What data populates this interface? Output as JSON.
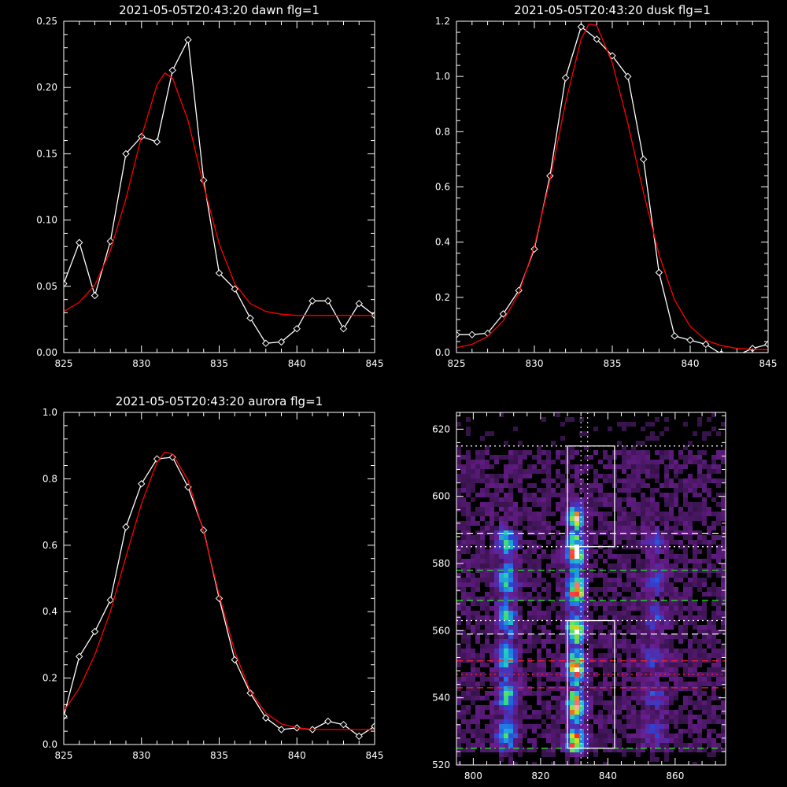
{
  "chart_data": [
    {
      "type": "line",
      "title": "2021-05-05T20:43:20 dawn flg=1",
      "xlim": [
        825,
        845
      ],
      "ylim": [
        0,
        0.25
      ],
      "xticks": [
        825,
        830,
        835,
        840,
        845
      ],
      "xtick_labels": [
        "825",
        "830",
        "835",
        "840",
        "845"
      ],
      "yticks": [
        0,
        0.05,
        0.1,
        0.15,
        0.2,
        0.25
      ],
      "ytick_labels": [
        "0.00",
        "0.05",
        "0.10",
        "0.15",
        "0.20",
        "0.25"
      ],
      "series": [
        {
          "kind": "data",
          "color": "#ffffff",
          "marker": "diamond",
          "x": [
            825,
            826,
            827,
            828,
            829,
            830,
            831,
            832,
            833,
            834,
            835,
            836,
            837,
            838,
            839,
            840,
            841,
            842,
            843,
            844,
            845
          ],
          "y": [
            0.052,
            0.083,
            0.043,
            0.084,
            0.15,
            0.163,
            0.159,
            0.213,
            0.236,
            0.13,
            0.06,
            0.048,
            0.026,
            0.007,
            0.008,
            0.018,
            0.039,
            0.039,
            0.018,
            0.037,
            0.028
          ]
        },
        {
          "kind": "fit",
          "color": "#ff0000",
          "x": [
            825,
            826,
            827,
            828,
            829,
            830,
            831,
            831.5,
            832,
            833,
            834,
            835,
            836,
            837,
            838,
            839,
            840,
            841,
            842,
            843,
            844,
            845
          ],
          "y": [
            0.031,
            0.038,
            0.051,
            0.077,
            0.116,
            0.163,
            0.202,
            0.211,
            0.207,
            0.175,
            0.126,
            0.082,
            0.052,
            0.037,
            0.031,
            0.029,
            0.028,
            0.028,
            0.028,
            0.028,
            0.028,
            0.028
          ]
        }
      ]
    },
    {
      "type": "line",
      "title": "2021-05-05T20:43:20 dusk flg=1",
      "xlim": [
        825,
        845
      ],
      "ylim": [
        0,
        1.2
      ],
      "xticks": [
        825,
        830,
        835,
        840,
        845
      ],
      "xtick_labels": [
        "825",
        "830",
        "835",
        "840",
        "845"
      ],
      "yticks": [
        0,
        0.2,
        0.4,
        0.6,
        0.8,
        1.0,
        1.2
      ],
      "ytick_labels": [
        "0.0",
        "0.2",
        "0.4",
        "0.6",
        "0.8",
        "1.0",
        "1.2"
      ],
      "series": [
        {
          "kind": "data",
          "color": "#ffffff",
          "marker": "diamond",
          "x": [
            825,
            826,
            827,
            828,
            829,
            830,
            831,
            832,
            833,
            834,
            835,
            836,
            837,
            838,
            839,
            840,
            841,
            842,
            843,
            844,
            845
          ],
          "y": [
            0.065,
            0.065,
            0.07,
            0.14,
            0.225,
            0.375,
            0.64,
            0.995,
            1.18,
            1.135,
            1.075,
            1.0,
            0.7,
            0.29,
            0.06,
            0.045,
            0.03,
            -0.005,
            -0.01,
            0.015,
            0.03
          ]
        },
        {
          "kind": "fit",
          "color": "#ff0000",
          "x": [
            825,
            826,
            827,
            828,
            829,
            830,
            831,
            832,
            833,
            833.5,
            834,
            835,
            836,
            837,
            838,
            839,
            840,
            841,
            842,
            843,
            844,
            845
          ],
          "y": [
            0.018,
            0.03,
            0.058,
            0.115,
            0.215,
            0.385,
            0.625,
            0.905,
            1.135,
            1.19,
            1.185,
            1.05,
            0.83,
            0.58,
            0.355,
            0.19,
            0.095,
            0.045,
            0.025,
            0.015,
            0.012,
            0.01
          ]
        }
      ]
    },
    {
      "type": "line",
      "title": "2021-05-05T20:43:20 aurora flg=1",
      "xlim": [
        825,
        845
      ],
      "ylim": [
        0,
        1.0
      ],
      "xticks": [
        825,
        830,
        835,
        840,
        845
      ],
      "xtick_labels": [
        "825",
        "830",
        "835",
        "840",
        "845"
      ],
      "yticks": [
        0,
        0.2,
        0.4,
        0.6,
        0.8,
        1.0
      ],
      "ytick_labels": [
        "0.0",
        "0.2",
        "0.4",
        "0.6",
        "0.8",
        "1.0"
      ],
      "series": [
        {
          "kind": "data",
          "color": "#ffffff",
          "marker": "diamond",
          "x": [
            825,
            826,
            827,
            828,
            829,
            830,
            831,
            832,
            833,
            834,
            835,
            836,
            837,
            838,
            839,
            840,
            841,
            842,
            843,
            844,
            845
          ],
          "y": [
            0.085,
            0.265,
            0.34,
            0.435,
            0.655,
            0.785,
            0.86,
            0.865,
            0.775,
            0.645,
            0.44,
            0.255,
            0.155,
            0.08,
            0.045,
            0.05,
            0.045,
            0.07,
            0.06,
            0.025,
            0.055
          ]
        },
        {
          "kind": "fit",
          "color": "#ff0000",
          "x": [
            825,
            826,
            827,
            828,
            829,
            830,
            831,
            831.5,
            832,
            833,
            834,
            835,
            836,
            837,
            838,
            839,
            840,
            841,
            842,
            843,
            844,
            845
          ],
          "y": [
            0.1,
            0.17,
            0.27,
            0.4,
            0.565,
            0.725,
            0.85,
            0.88,
            0.875,
            0.795,
            0.64,
            0.45,
            0.28,
            0.16,
            0.095,
            0.062,
            0.05,
            0.046,
            0.045,
            0.045,
            0.045,
            0.045
          ]
        }
      ]
    },
    {
      "type": "heatmap",
      "xlim": [
        795,
        875
      ],
      "ylim": [
        520,
        625
      ],
      "xticks": [
        800,
        820,
        840,
        860
      ],
      "xtick_labels": [
        "800",
        "820",
        "840",
        "860"
      ],
      "yticks": [
        520,
        540,
        560,
        580,
        600,
        620
      ],
      "ytick_labels": [
        "520",
        "540",
        "560",
        "580",
        "600",
        "620"
      ],
      "colormap": [
        "#000000",
        "#3a1450",
        "#6a1d8e",
        "#3340d0",
        "#1f7fe8",
        "#22c8c8",
        "#3fe070",
        "#d8e020",
        "#ff2020",
        "#ffffff"
      ],
      "bands": [
        {
          "x_center": 810,
          "width": 3.5,
          "y_start": 524,
          "y_end": 590,
          "peak": 0.45
        },
        {
          "x_center": 830.5,
          "width": 3.0,
          "y_start": 524,
          "y_end": 594,
          "peak": 0.82
        },
        {
          "x_center": 854,
          "width": 4.5,
          "y_start": 524,
          "y_end": 590,
          "peak": 0.18
        }
      ],
      "boxes": [
        {
          "x": [
            828,
            842
          ],
          "y": [
            585,
            615
          ],
          "color": "#ffffff"
        },
        {
          "x": [
            828,
            842
          ],
          "y": [
            525,
            563
          ],
          "color": "#ffffff"
        }
      ],
      "hlines": [
        {
          "y": 615,
          "color": "#ffffff",
          "style": "dotted"
        },
        {
          "y": 589,
          "color": "#ffffff",
          "style": "dashed"
        },
        {
          "y": 585,
          "color": "#ffffff",
          "style": "dotted"
        },
        {
          "y": 578,
          "color": "#22dd22",
          "style": "dashed"
        },
        {
          "y": 569,
          "color": "#22dd22",
          "style": "dashed"
        },
        {
          "y": 563,
          "color": "#ffffff",
          "style": "dotted"
        },
        {
          "y": 559,
          "color": "#ffffff",
          "style": "dashed"
        },
        {
          "y": 551,
          "color": "#ff2020",
          "style": "dashed"
        },
        {
          "y": 547,
          "color": "#ff2020",
          "style": "dotted"
        },
        {
          "y": 543,
          "color": "#ff2020",
          "style": "dashed"
        },
        {
          "y": 525,
          "color": "#22dd22",
          "style": "dashdot"
        }
      ],
      "vlines": [
        {
          "x": 832,
          "color": "#ffffff",
          "style": "dotted"
        },
        {
          "x": 834,
          "color": "#ffffff",
          "style": "dotted"
        }
      ]
    }
  ]
}
